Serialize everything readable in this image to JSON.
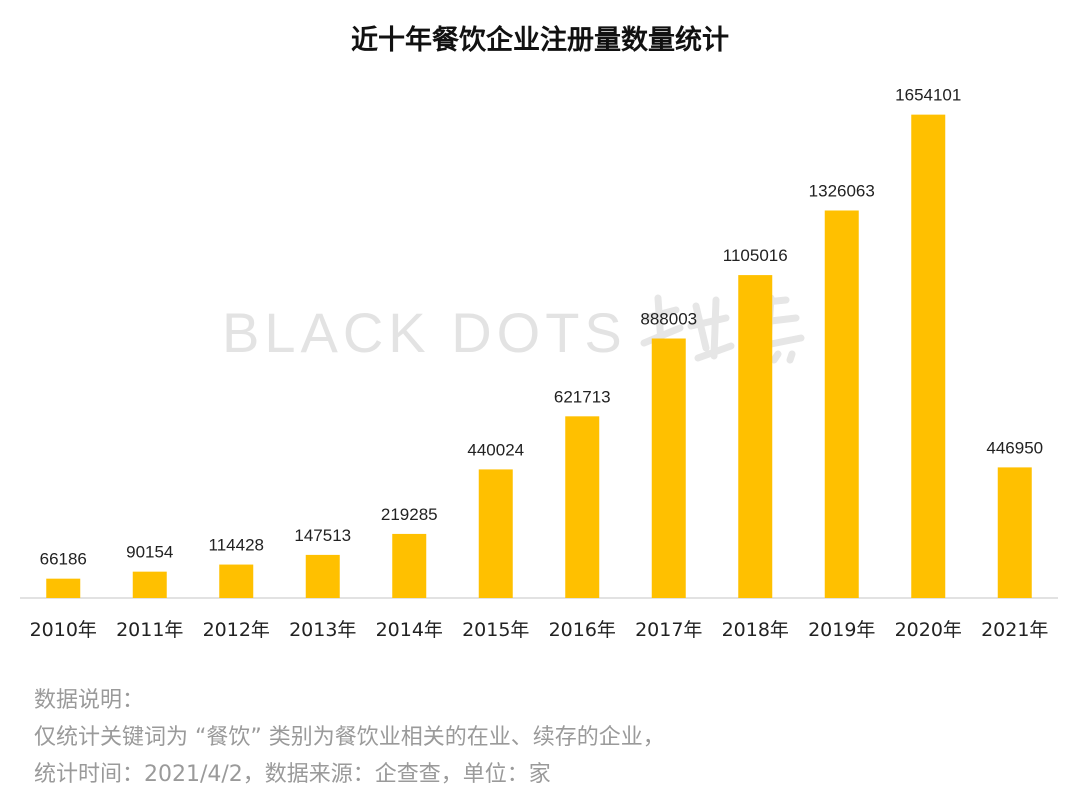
{
  "chart_data": {
    "type": "bar",
    "title": "近十年餐饮企业注册量数量统计",
    "categories": [
      "2010年",
      "2011年",
      "2012年",
      "2013年",
      "2014年",
      "2015年",
      "2016年",
      "2017年",
      "2018年",
      "2019年",
      "2020年",
      "2021年"
    ],
    "values": [
      66186,
      90154,
      114428,
      147513,
      219285,
      440024,
      621713,
      888003,
      1105016,
      1326063,
      1654101,
      446950
    ],
    "xlabel": "",
    "ylabel": "",
    "ylim": [
      0,
      1800000
    ],
    "grid": false,
    "legend": "none",
    "bar_color": "#FFC000"
  },
  "watermark": {
    "text": "BLACK DOTS"
  },
  "notes": {
    "heading": "数据说明：",
    "line1": "仅统计关键词为 “餐饮” 类别为餐饮业相关的在业、续存的企业，",
    "line2": "统计时间：2021/4/2，数据来源：企查查，单位：家"
  },
  "colors": {
    "bar": "#FFC000",
    "axis": "#d9d9d9",
    "note_text": "#9a9a9a",
    "title": "#111111"
  }
}
